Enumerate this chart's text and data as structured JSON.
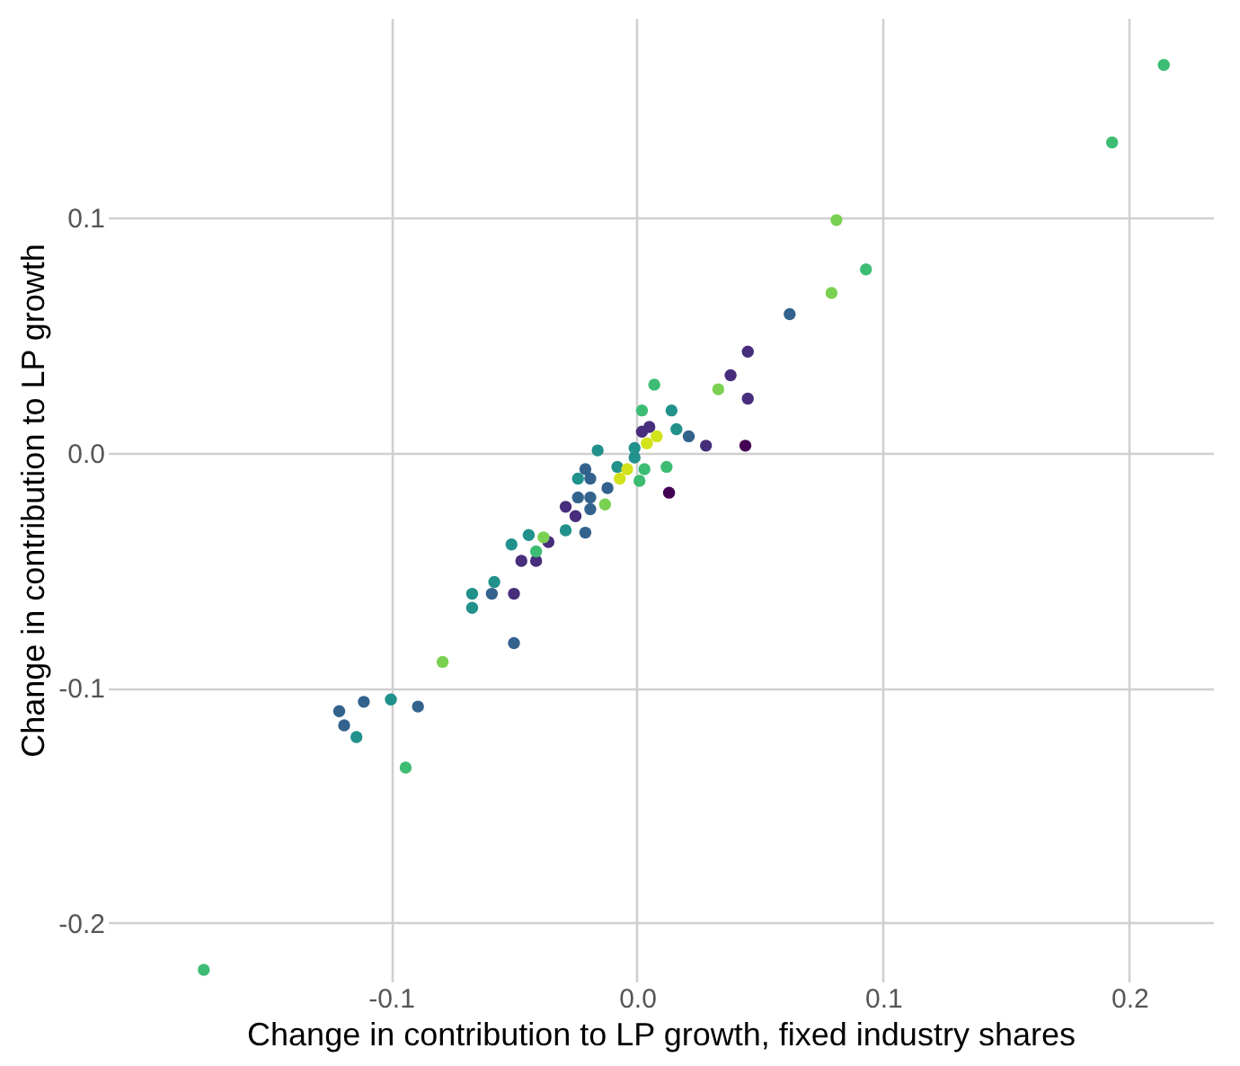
{
  "chart_data": {
    "type": "scatter",
    "xlabel": "Change in contribution to LP growth, fixed industry shares",
    "ylabel": "Change in contribution to LP growth",
    "xlim": [
      -0.215,
      0.234
    ],
    "ylim": [
      -0.225,
      0.185
    ],
    "xticks": [
      {
        "value": -0.1,
        "label": "-0.1"
      },
      {
        "value": 0,
        "label": "0.0"
      },
      {
        "value": 0.1,
        "label": "0.1"
      },
      {
        "value": 0.2,
        "label": "0.2"
      }
    ],
    "yticks": [
      {
        "value": -0.2,
        "label": "-0.2"
      },
      {
        "value": -0.1,
        "label": "-0.1"
      },
      {
        "value": 0,
        "label": "0.0"
      },
      {
        "value": 0.1,
        "label": "0.1"
      }
    ],
    "grid": true,
    "legend": false,
    "marker": "circle",
    "series": [
      {
        "color": "#440154",
        "x": [
          0.044,
          0.013
        ],
        "values": [
          0.003,
          -0.017
        ]
      },
      {
        "color": "#472d7b",
        "x": [
          0.045,
          0.038,
          0.045,
          0.028,
          0.005,
          0.002,
          -0.029,
          -0.025,
          -0.036,
          -0.047,
          -0.041,
          -0.05
        ],
        "values": [
          0.043,
          0.033,
          0.023,
          0.003,
          0.011,
          0.009,
          -0.023,
          -0.027,
          -0.038,
          -0.046,
          -0.046,
          -0.06
        ]
      },
      {
        "color": "#33638d",
        "x": [
          0.021,
          -0.021,
          -0.019,
          -0.012,
          -0.024,
          -0.019,
          -0.019,
          -0.021,
          -0.059,
          -0.05,
          -0.111,
          -0.089,
          -0.121,
          -0.119,
          0.062
        ],
        "values": [
          0.007,
          -0.007,
          -0.011,
          -0.015,
          -0.019,
          -0.019,
          -0.024,
          -0.034,
          -0.06,
          -0.081,
          -0.106,
          -0.108,
          -0.11,
          -0.116,
          0.059
        ]
      },
      {
        "color": "#21918c",
        "x": [
          0.014,
          0.016,
          -0.001,
          -0.001,
          -0.008,
          -0.016,
          -0.024,
          -0.029,
          -0.044,
          -0.051,
          -0.058,
          -0.067,
          -0.067,
          -0.1,
          -0.114
        ],
        "values": [
          0.018,
          0.01,
          0.002,
          -0.002,
          -0.006,
          0.001,
          -0.011,
          -0.033,
          -0.035,
          -0.039,
          -0.055,
          -0.06,
          -0.066,
          -0.105,
          -0.121
        ]
      },
      {
        "color": "#3dbc74",
        "x": [
          0.214,
          0.193,
          0.007,
          0.002,
          0.003,
          0.012,
          0.001,
          -0.041,
          0.093,
          -0.094,
          -0.176
        ],
        "values": [
          0.165,
          0.132,
          0.029,
          0.018,
          -0.007,
          -0.006,
          -0.012,
          -0.042,
          0.078,
          -0.134,
          -0.22
        ]
      },
      {
        "color": "#7ad151",
        "x": [
          0.081,
          0.079,
          0.033,
          -0.038,
          -0.013,
          -0.079
        ],
        "values": [
          0.099,
          0.068,
          0.027,
          -0.036,
          -0.022,
          -0.089
        ]
      },
      {
        "color": "#d2e21b",
        "x": [
          0.008,
          0.004,
          -0.004,
          -0.007
        ],
        "values": [
          0.007,
          0.004,
          -0.007,
          -0.011
        ]
      }
    ]
  }
}
